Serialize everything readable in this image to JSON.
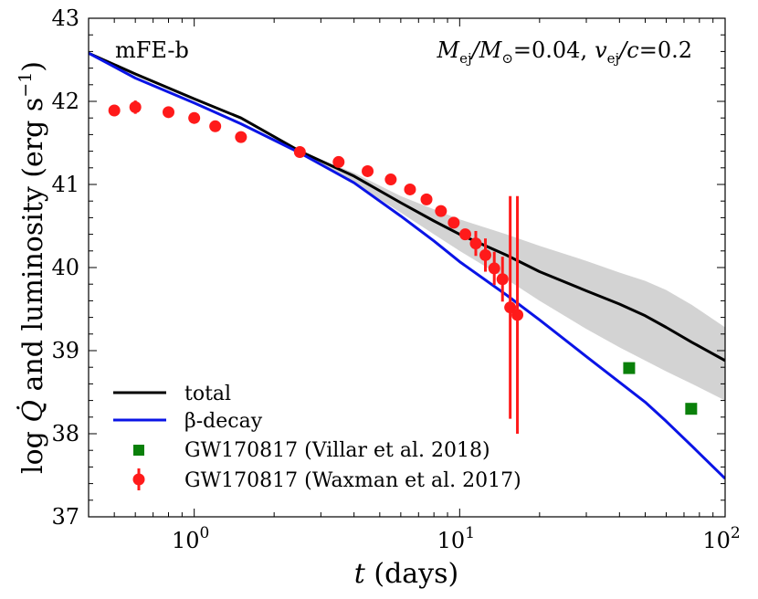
{
  "chart_data": {
    "type": "line",
    "title": "",
    "annotation_left": "mFE-b",
    "annotation_right": "M_ej/M_⊙ = 0.04, v_ej/c = 0.2",
    "annotation_right_parts": {
      "a": "M",
      "a_sub": "ej",
      "b": "/M",
      "b_sub": "⊙",
      "c": "=0.04,",
      "d": "v",
      "d_sub": "ej",
      "e": "/c",
      "f": "=0.2"
    },
    "xlabel": "t (days)",
    "xlabel_parts": {
      "var": "t",
      "unit": " (days)"
    },
    "ylabel": "log Q̇ and luminosity (erg s⁻¹)",
    "ylabel_parts": {
      "pre": "log ",
      "var": "Q̇",
      "post": " and luminosity (erg s",
      "sup": "−1",
      "close": ")"
    },
    "x_scale": "log",
    "xlim": [
      0.4,
      100
    ],
    "ylim": [
      37,
      43
    ],
    "x_ticks": [
      {
        "value": 1,
        "label_base": "10",
        "label_exp": "0"
      },
      {
        "value": 10,
        "label_base": "10",
        "label_exp": "1"
      },
      {
        "value": 100,
        "label_base": "10",
        "label_exp": "2"
      }
    ],
    "y_ticks": [
      {
        "value": 37,
        "label": "37"
      },
      {
        "value": 38,
        "label": "38"
      },
      {
        "value": 39,
        "label": "39"
      },
      {
        "value": 40,
        "label": "40"
      },
      {
        "value": 41,
        "label": "41"
      },
      {
        "value": 42,
        "label": "42"
      },
      {
        "value": 43,
        "label": "43"
      }
    ],
    "legend_position": "lower-left",
    "legend": [
      {
        "key": "total",
        "label": "total"
      },
      {
        "key": "beta",
        "label": "β-decay"
      },
      {
        "key": "villar",
        "label": "GW170817 (Villar et al. 2018)"
      },
      {
        "key": "waxman",
        "label": "GW170817 (Waxman et al. 2017)"
      }
    ],
    "series": [
      {
        "key": "total",
        "name": "total",
        "color": "#000000",
        "x": [
          0.4,
          0.6,
          1.0,
          1.5,
          2.5,
          4,
          6,
          8,
          10,
          15,
          20,
          30,
          40,
          50,
          60,
          75,
          100
        ],
        "y": [
          42.58,
          42.33,
          42.03,
          41.8,
          41.4,
          41.1,
          40.78,
          40.56,
          40.4,
          40.15,
          39.95,
          39.72,
          39.56,
          39.42,
          39.28,
          39.1,
          38.88
        ]
      },
      {
        "key": "beta",
        "name": "β-decay",
        "color": "#0a14e6",
        "x": [
          0.4,
          0.6,
          1.0,
          1.5,
          2.5,
          4,
          6,
          8,
          10,
          15,
          20,
          30,
          40,
          50,
          60,
          75,
          100
        ],
        "y": [
          42.58,
          42.28,
          41.98,
          41.73,
          41.38,
          41.02,
          40.62,
          40.32,
          40.07,
          39.67,
          39.37,
          38.93,
          38.62,
          38.38,
          38.15,
          37.85,
          37.46
        ]
      }
    ],
    "band": {
      "color": "#d3d3d3",
      "x": [
        2.5,
        4,
        6,
        8,
        10,
        15,
        20,
        30,
        40,
        50,
        60,
        75,
        100
      ],
      "y_low": [
        41.38,
        41.02,
        40.66,
        40.4,
        40.2,
        39.86,
        39.6,
        39.26,
        39.04,
        38.88,
        38.75,
        38.6,
        38.4
      ],
      "y_high": [
        41.4,
        41.14,
        40.86,
        40.7,
        40.58,
        40.4,
        40.26,
        40.08,
        39.94,
        39.84,
        39.73,
        39.55,
        39.28
      ]
    },
    "villar": {
      "name": "GW170817 (Villar et al. 2018)",
      "color": "#0a800a",
      "points": [
        {
          "x": 43.5,
          "y": 38.79
        },
        {
          "x": 74.5,
          "y": 38.3
        }
      ]
    },
    "waxman": {
      "name": "GW170817 (Waxman et al. 2017)",
      "color": "#ff1a1a",
      "points": [
        {
          "x": 0.5,
          "y": 41.89,
          "err": 0.0
        },
        {
          "x": 0.6,
          "y": 41.93,
          "err": 0.08
        },
        {
          "x": 0.8,
          "y": 41.87,
          "err": 0.0
        },
        {
          "x": 1.0,
          "y": 41.8,
          "err": 0.0
        },
        {
          "x": 1.2,
          "y": 41.7,
          "err": 0.0
        },
        {
          "x": 1.5,
          "y": 41.57,
          "err": 0.0
        },
        {
          "x": 2.5,
          "y": 41.39,
          "err": 0.0
        },
        {
          "x": 3.5,
          "y": 41.27,
          "err": 0.0
        },
        {
          "x": 4.5,
          "y": 41.16,
          "err": 0.0
        },
        {
          "x": 5.5,
          "y": 41.06,
          "err": 0.0
        },
        {
          "x": 6.5,
          "y": 40.94,
          "err": 0.0
        },
        {
          "x": 7.5,
          "y": 40.82,
          "err": 0.0
        },
        {
          "x": 8.5,
          "y": 40.68,
          "err": 0.0
        },
        {
          "x": 9.5,
          "y": 40.54,
          "err": 0.0
        },
        {
          "x": 10.5,
          "y": 40.4,
          "err": 0.06
        },
        {
          "x": 11.5,
          "y": 40.29,
          "err": 0.15
        },
        {
          "x": 12.5,
          "y": 40.15,
          "err": 0.2
        },
        {
          "x": 13.5,
          "y": 39.99,
          "err": 0.2
        },
        {
          "x": 14.5,
          "y": 39.86,
          "err": 0.27
        },
        {
          "x": 15.5,
          "y": 39.52,
          "err": 1.34
        },
        {
          "x": 16.5,
          "y": 39.43,
          "err": 1.43
        }
      ]
    }
  }
}
